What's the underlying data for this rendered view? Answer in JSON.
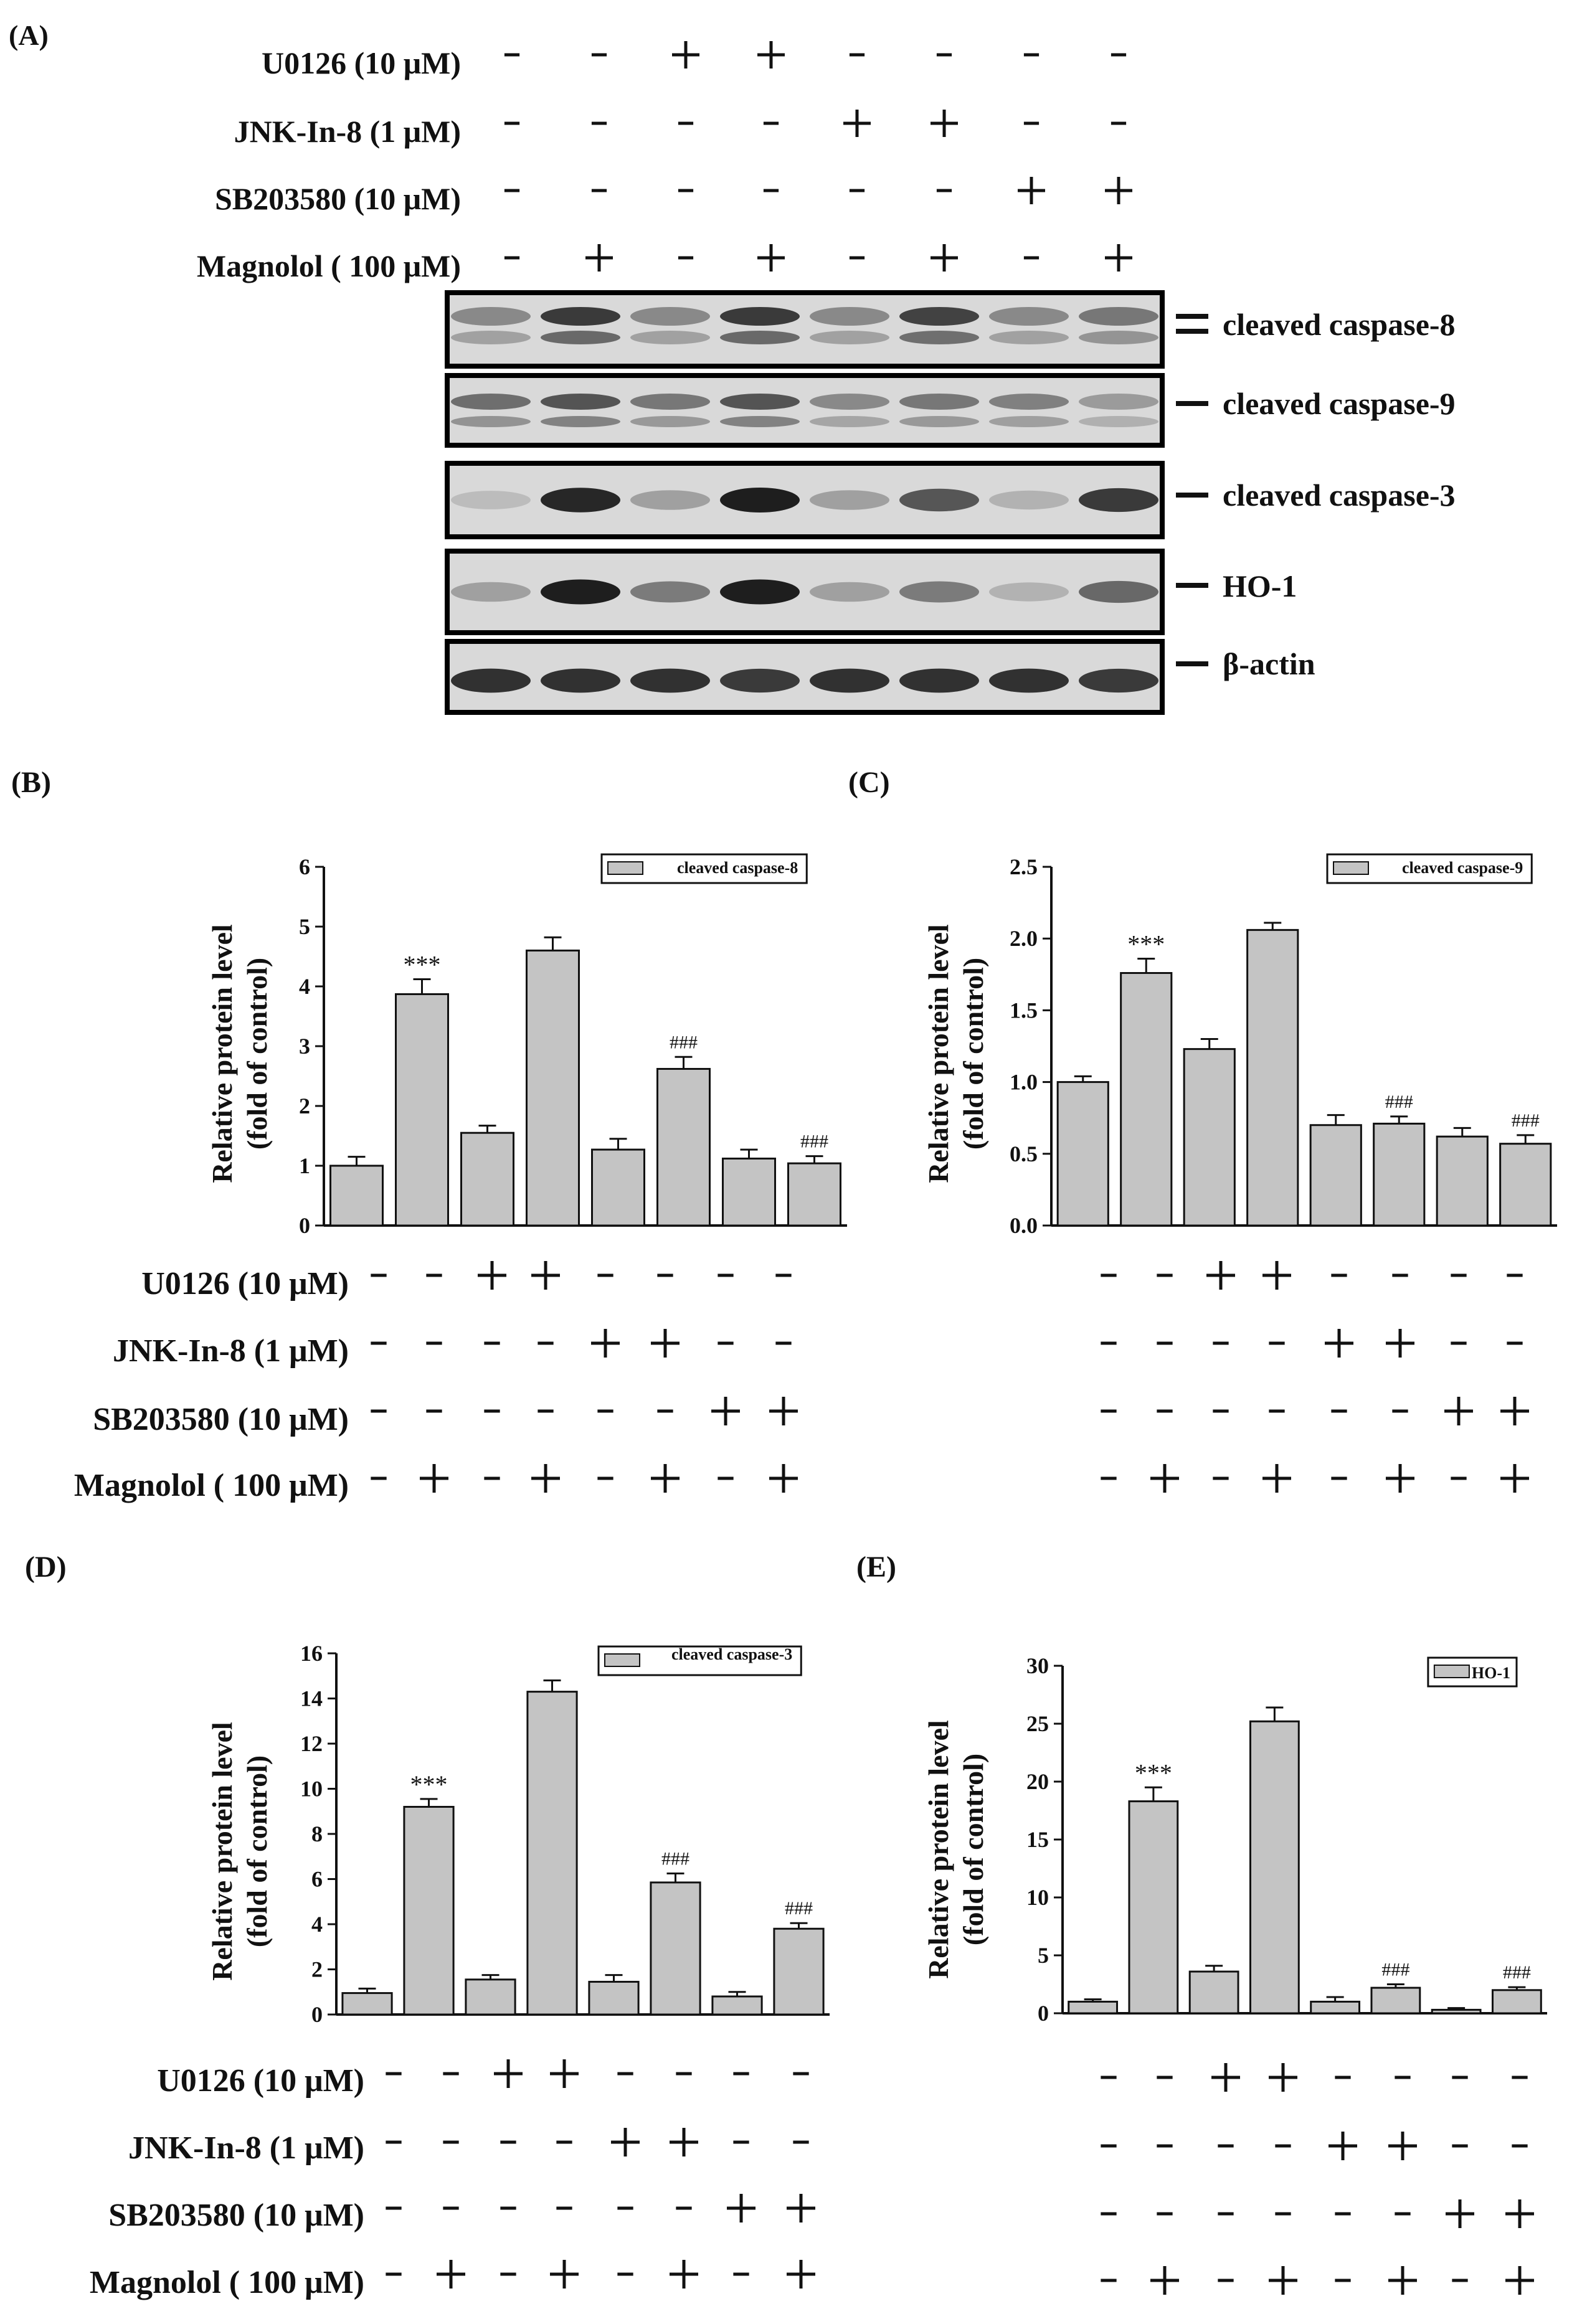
{
  "panel_labels": {
    "A": "(A)",
    "B": "(B)",
    "C": "(C)",
    "D": "(D)",
    "E": "(E)"
  },
  "treatments": [
    {
      "label": "U0126 (10 μM)",
      "signs": [
        "-",
        "-",
        "+",
        "+",
        "-",
        "-",
        "-",
        "-"
      ]
    },
    {
      "label": "JNK-In-8 (1 μM)",
      "signs": [
        "-",
        "-",
        "-",
        "-",
        "+",
        "+",
        "-",
        "-"
      ]
    },
    {
      "label": "SB203580 (10 μM)",
      "signs": [
        "-",
        "-",
        "-",
        "-",
        "-",
        "-",
        "+",
        "+"
      ]
    },
    {
      "label": "Magnolol ( 100 μM)",
      "signs": [
        "-",
        "+",
        "-",
        "+",
        "-",
        "+",
        "-",
        "+"
      ]
    }
  ],
  "blot_labels": [
    "cleaved caspase-8",
    "cleaved caspase-9",
    "cleaved caspase-3",
    "HO-1",
    "β-actin"
  ],
  "blot_intensities": [
    [
      0.45,
      0.9,
      0.45,
      0.9,
      0.45,
      0.85,
      0.45,
      0.55
    ],
    [
      0.6,
      0.75,
      0.55,
      0.75,
      0.45,
      0.55,
      0.5,
      0.35
    ],
    [
      0.15,
      0.95,
      0.3,
      1.0,
      0.3,
      0.7,
      0.2,
      0.85
    ],
    [
      0.3,
      1.0,
      0.5,
      1.0,
      0.3,
      0.5,
      0.2,
      0.6
    ],
    [
      0.9,
      0.9,
      0.9,
      0.85,
      0.9,
      0.9,
      0.9,
      0.85
    ]
  ],
  "significance": {
    "vs_control": "***",
    "vs_magnolol": "###"
  },
  "chart_data": [
    {
      "panel": "B",
      "type": "bar",
      "legend": "cleaved caspase-8",
      "legend_position": "top-right",
      "ylabel": [
        "Relative protein level",
        "(fold of control)"
      ],
      "ylim": [
        0,
        6
      ],
      "yticks": [
        "0",
        "1",
        "2",
        "3",
        "4",
        "5",
        "6"
      ],
      "values": [
        1.0,
        3.87,
        1.55,
        4.6,
        1.27,
        2.62,
        1.12,
        1.04
      ],
      "errors": [
        0.15,
        0.25,
        0.12,
        0.22,
        0.18,
        0.2,
        0.15,
        0.12
      ],
      "annotations": [
        "",
        "***",
        "",
        "",
        "",
        "###",
        "",
        "###"
      ]
    },
    {
      "panel": "C",
      "type": "bar",
      "legend": "cleaved caspase-9",
      "legend_position": "top-right",
      "ylabel": [
        "Relative protein level",
        "(fold of control)"
      ],
      "ylim": [
        0,
        2.5
      ],
      "yticks": [
        "0.0",
        "0.5",
        "1.0",
        "1.5",
        "2.0",
        "2.5"
      ],
      "values": [
        1.0,
        1.76,
        1.23,
        2.06,
        0.7,
        0.71,
        0.62,
        0.57
      ],
      "errors": [
        0.04,
        0.1,
        0.07,
        0.05,
        0.07,
        0.05,
        0.06,
        0.06
      ],
      "annotations": [
        "",
        "***",
        "",
        "",
        "",
        "###",
        "",
        "###"
      ]
    },
    {
      "panel": "D",
      "type": "bar",
      "legend": "cleaved caspase-3",
      "legend_position": "top-right",
      "ylabel": [
        "Relative protein level",
        "(fold of control)"
      ],
      "ylim": [
        0,
        16
      ],
      "yticks": [
        "0",
        "2",
        "4",
        "6",
        "8",
        "10",
        "12",
        "14",
        "16"
      ],
      "values": [
        0.95,
        9.2,
        1.55,
        14.3,
        1.45,
        5.85,
        0.8,
        3.8
      ],
      "errors": [
        0.2,
        0.35,
        0.2,
        0.5,
        0.3,
        0.4,
        0.2,
        0.25
      ],
      "annotations": [
        "",
        "***",
        "",
        "",
        "",
        "###",
        "",
        "###"
      ]
    },
    {
      "panel": "E",
      "type": "bar",
      "legend": "HO-1",
      "legend_position": "top-right",
      "ylabel": [
        "Relative protein level",
        "(fold of control)"
      ],
      "ylim": [
        0,
        30
      ],
      "yticks": [
        "0",
        "5",
        "10",
        "15",
        "20",
        "25",
        "30"
      ],
      "values": [
        1.0,
        18.3,
        3.6,
        25.2,
        1.0,
        2.2,
        0.3,
        2.0
      ],
      "errors": [
        0.2,
        1.2,
        0.5,
        1.2,
        0.4,
        0.3,
        0.15,
        0.25
      ],
      "annotations": [
        "",
        "***",
        "",
        "",
        "",
        "###",
        "",
        "###"
      ]
    }
  ]
}
